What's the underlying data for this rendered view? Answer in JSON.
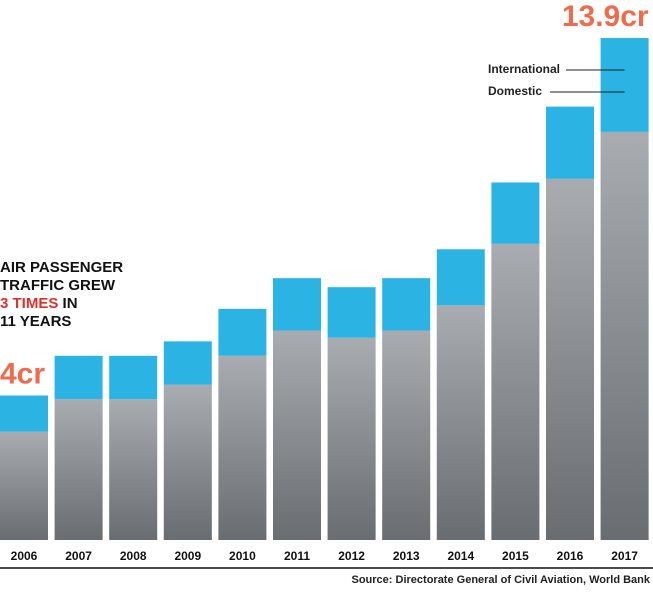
{
  "chart_data": {
    "type": "stacked_bar",
    "categories": [
      "2006",
      "2007",
      "2008",
      "2009",
      "2010",
      "2011",
      "2012",
      "2013",
      "2014",
      "2015",
      "2016",
      "2017"
    ],
    "series": [
      {
        "name": "Domestic",
        "color": "#8c9196",
        "values": [
          3.0,
          3.9,
          3.9,
          4.3,
          5.1,
          5.8,
          5.6,
          5.8,
          6.5,
          8.2,
          10.0,
          11.3
        ]
      },
      {
        "name": "International",
        "color": "#2bb3e3",
        "values": [
          1.0,
          1.2,
          1.2,
          1.2,
          1.3,
          1.45,
          1.4,
          1.45,
          1.55,
          1.7,
          2.0,
          2.6
        ]
      }
    ],
    "ylim": [
      0,
      13.9
    ],
    "annotations": [
      {
        "category": 0,
        "text": "4cr"
      },
      {
        "category": 11,
        "text": "13.9cr"
      }
    ],
    "heading": [
      "AIR PASSENGER",
      "TRAFFIC GREW",
      "3 TIMES",
      "IN",
      "11 YEARS"
    ],
    "source": "Source: Directorate General of Civil Aviation, World Bank"
  }
}
